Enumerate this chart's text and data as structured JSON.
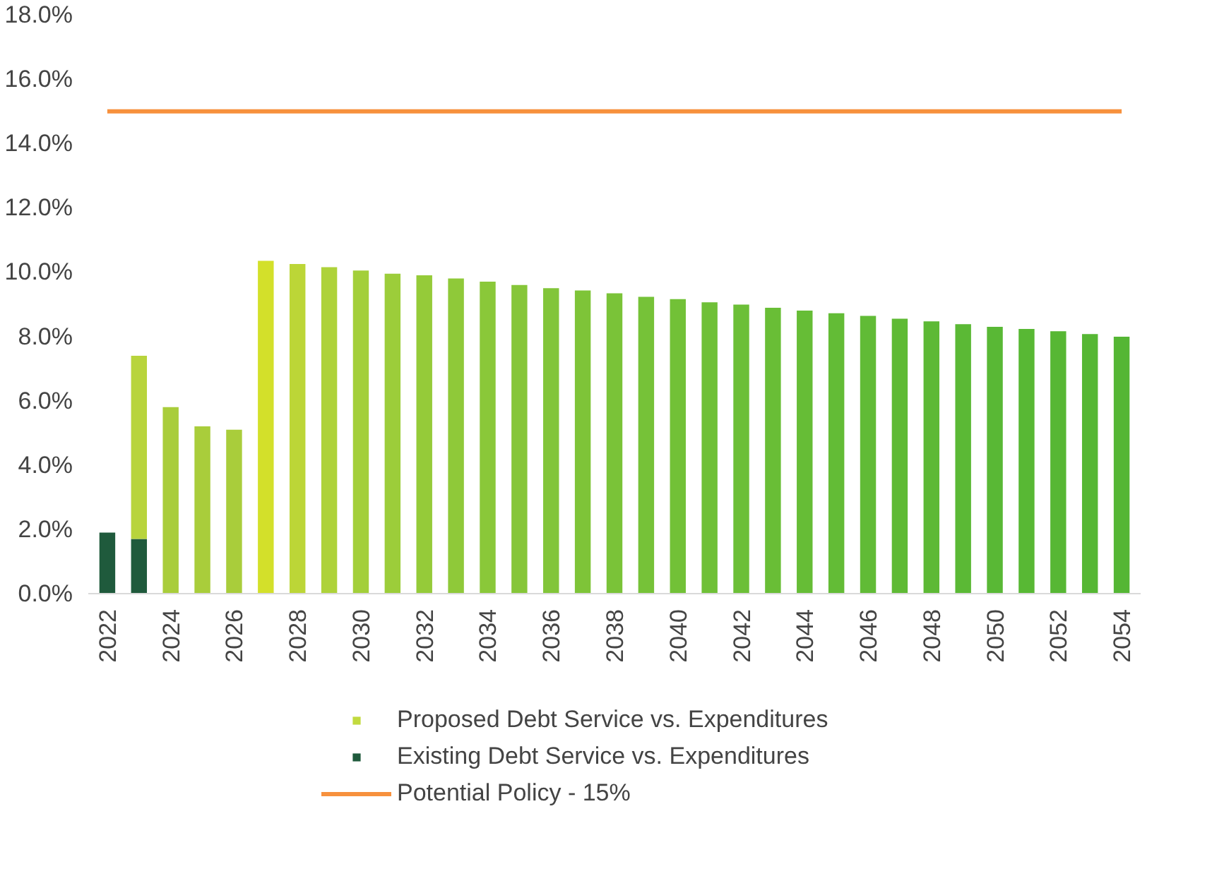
{
  "chart_data": {
    "type": "bar",
    "stacked": true,
    "categories": [
      "2022",
      null,
      "2024",
      null,
      "2026",
      null,
      "2028",
      null,
      "2030",
      null,
      "2032",
      null,
      "2034",
      null,
      "2036",
      null,
      "2038",
      null,
      "2040",
      null,
      "2042",
      null,
      "2044",
      null,
      "2046",
      null,
      "2048",
      null,
      "2050",
      null,
      "2052",
      null,
      "2054"
    ],
    "series": [
      {
        "name": "Existing Debt Service vs. Expenditures",
        "color": "#1f5a3c",
        "values": [
          1.9,
          1.7,
          null,
          null,
          null,
          null,
          null,
          null,
          null,
          null,
          null,
          null,
          null,
          null,
          null,
          null,
          null,
          null,
          null,
          null,
          null,
          null,
          null,
          null,
          null,
          null,
          null,
          null,
          null,
          null,
          null,
          null,
          null
        ]
      },
      {
        "name": "Proposed Debt Service vs. Expenditures",
        "color": "#c2da3e",
        "values": [
          null,
          5.7,
          5.8,
          5.2,
          5.1,
          10.35,
          10.25,
          10.15,
          10.05,
          9.95,
          9.9,
          9.8,
          9.7,
          9.6,
          9.5,
          9.43,
          9.34,
          9.23,
          9.16,
          9.06,
          8.99,
          8.89,
          8.8,
          8.72,
          8.64,
          8.55,
          8.47,
          8.38,
          8.3,
          8.23,
          8.16,
          8.07,
          7.99
        ],
        "colors": [
          "#c2da3e",
          "#b8d43c",
          "#a9cd3b",
          "#a9cd3b",
          "#a9cd3b",
          "#d3e02a",
          "#bcd637",
          "#aed23a",
          "#a3cf3a",
          "#9ccd3a",
          "#95cb39",
          "#8fc939",
          "#8ac839",
          "#86c639",
          "#82c539",
          "#7ec438",
          "#7ac338",
          "#76c238",
          "#72c137",
          "#6fc037",
          "#6cbf37",
          "#69be36",
          "#66bd36",
          "#63bc36",
          "#61bb36",
          "#5fba35",
          "#5db935",
          "#5bb935",
          "#59b835",
          "#58b834",
          "#57b734",
          "#56b734",
          "#55b634"
        ]
      },
      {
        "type": "line",
        "name": "Potential Policy - 15%",
        "color": "#f7913d",
        "values": [
          15,
          15,
          15,
          15,
          15,
          15,
          15,
          15,
          15,
          15,
          15,
          15,
          15,
          15,
          15,
          15,
          15,
          15,
          15,
          15,
          15,
          15,
          15,
          15,
          15,
          15,
          15,
          15,
          15,
          15,
          15,
          15,
          15
        ]
      }
    ],
    "ylim": [
      0,
      18
    ],
    "yticks": [
      {
        "value": 0,
        "label": "0.0%"
      },
      {
        "value": 2,
        "label": "2.0%"
      },
      {
        "value": 4,
        "label": "4.0%"
      },
      {
        "value": 6,
        "label": "6.0%"
      },
      {
        "value": 8,
        "label": "8.0%"
      },
      {
        "value": 10,
        "label": "10.0%"
      },
      {
        "value": 12,
        "label": "12.0%"
      },
      {
        "value": 14,
        "label": "14.0%"
      },
      {
        "value": 16,
        "label": "16.0%"
      },
      {
        "value": 18,
        "label": "18.0%"
      }
    ],
    "grid": false,
    "legend": "bottom"
  }
}
